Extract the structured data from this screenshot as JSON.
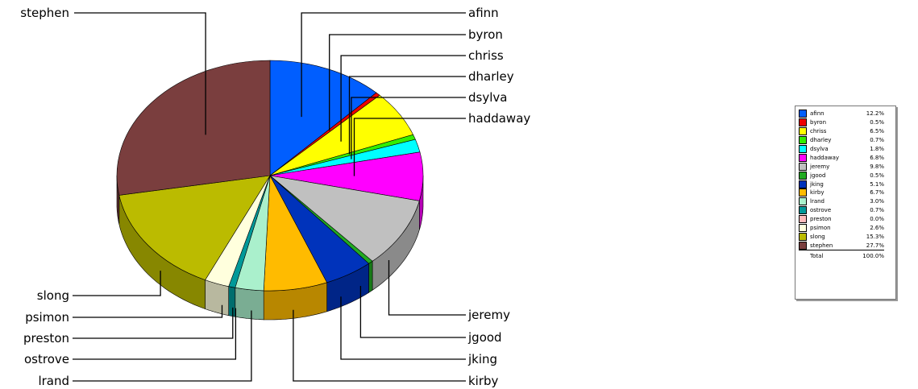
{
  "chart_data": {
    "type": "pie",
    "title": "",
    "slices": [
      {
        "label": "afinn",
        "value": 12.2,
        "pct_label": "12.2%",
        "color": "#005eff"
      },
      {
        "label": "byron",
        "value": 0.5,
        "pct_label": "0.5%",
        "color": "#ee0000"
      },
      {
        "label": "chriss",
        "value": 6.5,
        "pct_label": "6.5%",
        "color": "#ffff00"
      },
      {
        "label": "dharley",
        "value": 0.7,
        "pct_label": "0.7%",
        "color": "#33ee00"
      },
      {
        "label": "dsylva",
        "value": 1.8,
        "pct_label": "1.8%",
        "color": "#00ffff"
      },
      {
        "label": "haddaway",
        "value": 6.8,
        "pct_label": "6.8%",
        "color": "#ff00ff"
      },
      {
        "label": "jeremy",
        "value": 9.8,
        "pct_label": "9.8%",
        "color": "#c0c0c0"
      },
      {
        "label": "jgood",
        "value": 0.5,
        "pct_label": "0.5%",
        "color": "#22aa22"
      },
      {
        "label": "jking",
        "value": 5.1,
        "pct_label": "5.1%",
        "color": "#0033bb"
      },
      {
        "label": "kirby",
        "value": 6.7,
        "pct_label": "6.7%",
        "color": "#ffbb00"
      },
      {
        "label": "lrand",
        "value": 3.0,
        "pct_label": "3.0%",
        "color": "#aaf0cc"
      },
      {
        "label": "ostrove",
        "value": 0.7,
        "pct_label": "0.7%",
        "color": "#009999"
      },
      {
        "label": "preston",
        "value": 0.0,
        "pct_label": "0.0%",
        "color": "#ffbbbb"
      },
      {
        "label": "psimon",
        "value": 2.6,
        "pct_label": "2.6%",
        "color": "#ffffdd"
      },
      {
        "label": "slong",
        "value": 15.3,
        "pct_label": "15.3%",
        "color": "#bbbb00"
      },
      {
        "label": "stephen",
        "value": 27.7,
        "pct_label": "27.7%",
        "color": "#7a3e3e"
      }
    ],
    "legend": {
      "placement": "right",
      "total_label": "Total",
      "total_value": "100.0%"
    }
  }
}
